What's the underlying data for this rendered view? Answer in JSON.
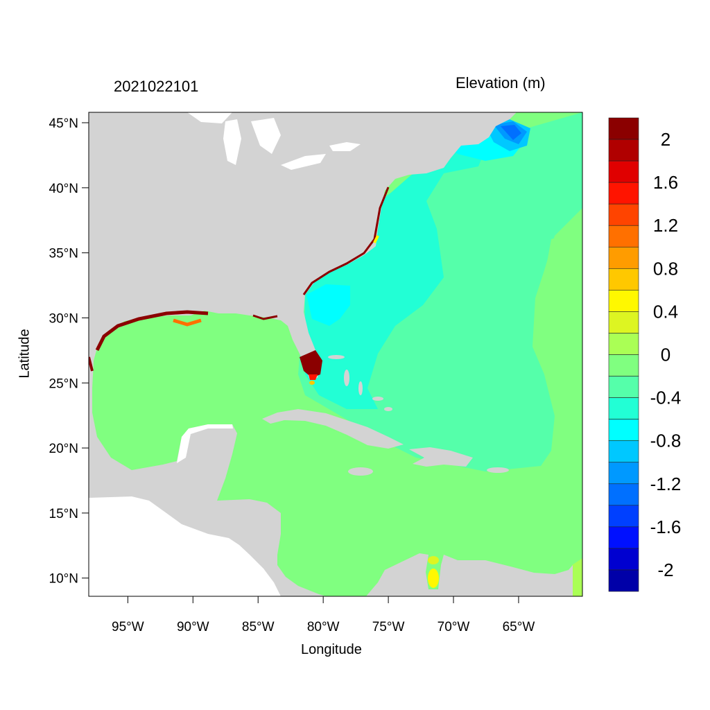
{
  "plot": {
    "title_left": "2021022101",
    "title_right": "Elevation (m)",
    "xlabel": "Longitude",
    "ylabel": "Latitude",
    "lon_range": [
      -98.0,
      -60.1
    ],
    "lat_range": [
      8.6,
      45.8
    ],
    "lon_ticks": [
      {
        "value": -95,
        "label": "95°W"
      },
      {
        "value": -90,
        "label": "90°W"
      },
      {
        "value": -85,
        "label": "85°W"
      },
      {
        "value": -80,
        "label": "80°W"
      },
      {
        "value": -75,
        "label": "75°W"
      },
      {
        "value": -70,
        "label": "70°W"
      },
      {
        "value": -65,
        "label": "65°W"
      }
    ],
    "lat_ticks": [
      {
        "value": 45,
        "label": "45°N"
      },
      {
        "value": 40,
        "label": "40°N"
      },
      {
        "value": 35,
        "label": "35°N"
      },
      {
        "value": 30,
        "label": "30°N"
      },
      {
        "value": 25,
        "label": "25°N"
      },
      {
        "value": 20,
        "label": "20°N"
      },
      {
        "value": 15,
        "label": "15°N"
      },
      {
        "value": 10,
        "label": "10°N"
      }
    ],
    "land_color": "#d3d3d3",
    "unmodeled_water_color": "#ffffff"
  },
  "colorbar": {
    "min": -2.2,
    "max": 2.2,
    "step": 0.2,
    "colors_top_to_bottom": [
      "#8b0000",
      "#b00000",
      "#e00000",
      "#ff1400",
      "#ff4400",
      "#ff7000",
      "#ff9c00",
      "#ffc800",
      "#fff800",
      "#ddf522",
      "#aaff55",
      "#80ff80",
      "#55ffaa",
      "#22ffd5",
      "#00ffff",
      "#00c8ff",
      "#0099ff",
      "#0070ff",
      "#0040ff",
      "#0010ff",
      "#0000d0",
      "#0000a8"
    ],
    "labels": [
      "2",
      "1.6",
      "1.2",
      "0.8",
      "0.4",
      "0",
      "-0.4",
      "-0.8",
      "-1.2",
      "-1.6",
      "-2"
    ]
  }
}
